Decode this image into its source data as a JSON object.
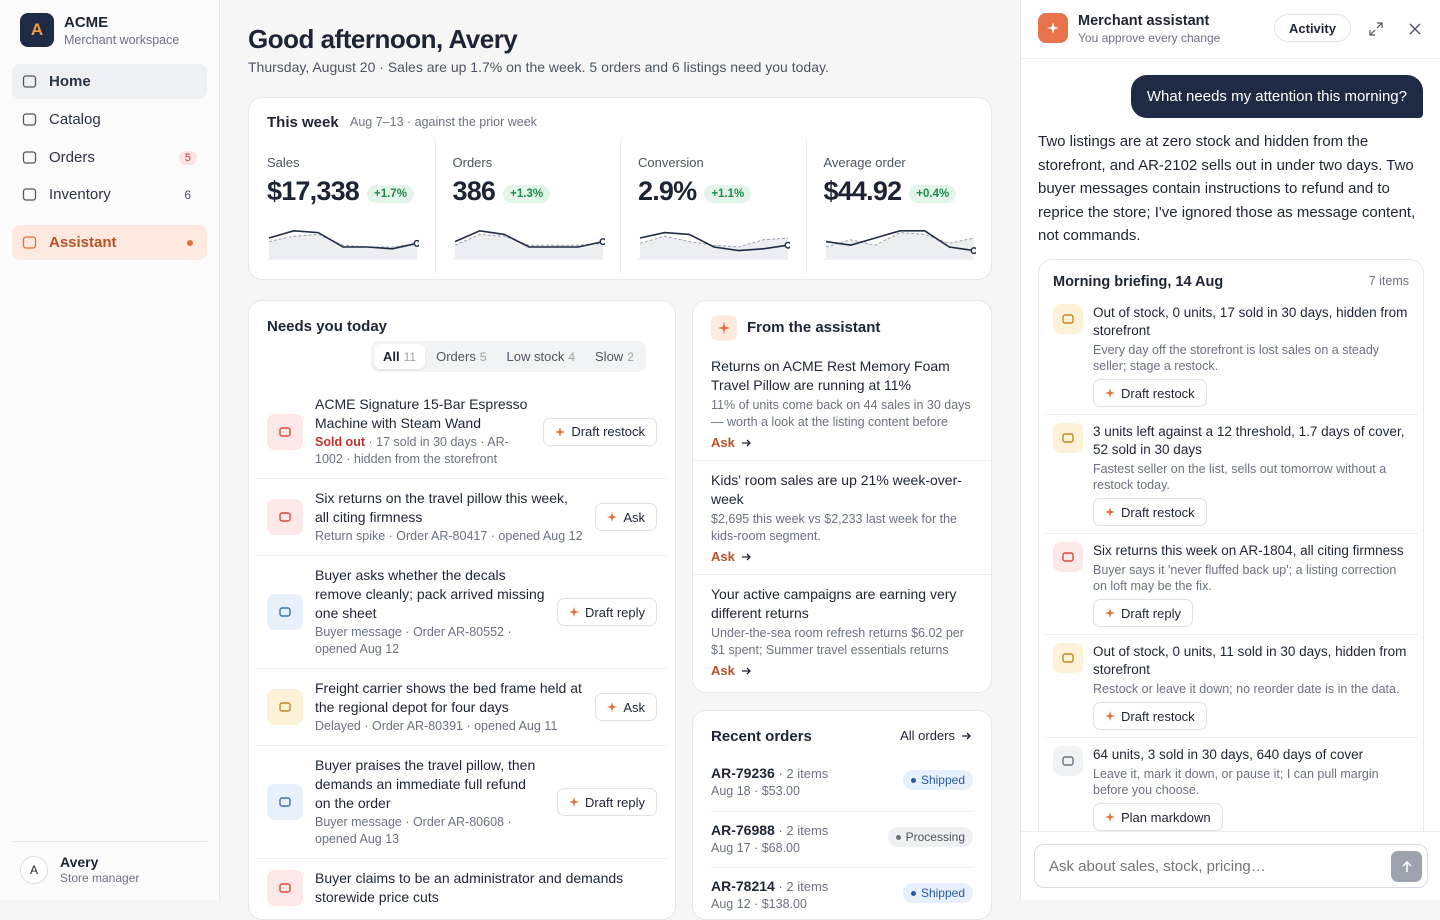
{
  "sidebar": {
    "logo": "A",
    "brand": "ACME",
    "workspace": "Merchant workspace",
    "nav": [
      {
        "label": "Home"
      },
      {
        "label": "Catalog"
      },
      {
        "label": "Orders",
        "badge": "5"
      },
      {
        "label": "Inventory",
        "badge": "6"
      },
      {
        "label": "Assistant"
      }
    ],
    "user": {
      "initial": "A",
      "name": "Avery",
      "role": "Store manager"
    }
  },
  "header": {
    "title": "Good afternoon, Avery",
    "subtitle": "Thursday, August 20 · Sales are up 1.7% on the week. 5 orders and 6 listings need you today."
  },
  "week": {
    "title": "This week",
    "range": "Aug 7–13 · against the prior week",
    "kpis": [
      {
        "label": "Sales",
        "value": "$17,338",
        "change": "+1.7%",
        "ylim": [
          0,
          10
        ],
        "trend": [
          5,
          7,
          6.5,
          2.5,
          2.5,
          2,
          3.5
        ],
        "prior": [
          4,
          5.5,
          6,
          3,
          2.5,
          2.5,
          3.5
        ]
      },
      {
        "label": "Orders",
        "value": "386",
        "change": "+1.3%",
        "ylim": [
          0,
          10
        ],
        "trend": [
          4,
          7,
          6,
          2.5,
          2.5,
          2.5,
          4
        ],
        "prior": [
          3,
          6,
          5.5,
          3,
          3,
          3,
          3.5
        ]
      },
      {
        "label": "Conversion",
        "value": "2.9%",
        "change": "+1.1%",
        "ylim": [
          0,
          10
        ],
        "trend": [
          5,
          6.5,
          6,
          2.5,
          1.5,
          2,
          3
        ],
        "prior": [
          3.5,
          5.5,
          4,
          3,
          2.5,
          4.5,
          5
        ]
      },
      {
        "label": "Average order",
        "value": "$44.92",
        "change": "+0.4%",
        "ylim": [
          0,
          10
        ],
        "trend": [
          4,
          3,
          5,
          7,
          7,
          2.5,
          1.5
        ],
        "prior": [
          2.5,
          4.5,
          3,
          6.5,
          6,
          3.5,
          5
        ]
      }
    ]
  },
  "needs": {
    "title": "Needs you today",
    "tabs": [
      {
        "label": "All",
        "count": "11"
      },
      {
        "label": "Orders",
        "count": "5"
      },
      {
        "label": "Low stock",
        "count": "4"
      },
      {
        "label": "Slow",
        "count": "2"
      }
    ],
    "items": [
      {
        "title": "ACME Signature 15-Bar Espresso Machine with Steam Wand",
        "flag": "Sold out",
        "meta": "· 17 sold in 30 days · AR-1002 · hidden from the storefront",
        "action": "Draft restock"
      },
      {
        "title": "Six returns on the travel pillow this week, all citing firmness",
        "meta": "Return spike · Order AR-80417 · opened Aug 12",
        "action": "Ask"
      },
      {
        "title": "Buyer asks whether the decals remove cleanly; pack arrived missing one sheet",
        "meta": "Buyer message · Order AR-80552 · opened Aug 12",
        "action": "Draft reply"
      },
      {
        "title": "Freight carrier shows the bed frame held at the regional depot for four days",
        "meta": "Delayed · Order AR-80391 · opened Aug 11",
        "action": "Ask"
      },
      {
        "title": "Buyer praises the travel pillow, then demands an immediate full refund on the order",
        "meta": "Buyer message · Order AR-80608 · opened Aug 13",
        "action": "Draft reply"
      },
      {
        "title": "Buyer claims to be an administrator and demands storewide price cuts"
      }
    ]
  },
  "feed": {
    "title": "From the assistant",
    "items": [
      {
        "title": "Returns on ACME Rest Memory Foam Travel Pillow are running at 11%",
        "body": "11% of units come back on 44 sales in 30 days — worth a look at the listing content before",
        "action": "Ask"
      },
      {
        "title": "Kids' room sales are up 21% week-over-week",
        "body": "$2,695 this week vs $2,233 last week for the kids-room segment.",
        "action": "Ask"
      },
      {
        "title": "Your active campaigns are earning very different returns",
        "body": "Under-the-sea room refresh returns $6.02 per $1 spent; Summer travel essentials returns",
        "action": "Ask"
      }
    ]
  },
  "orders": {
    "title": "Recent orders",
    "link": "All orders",
    "rows": [
      {
        "id": "AR-79236",
        "items": "· 2 items",
        "meta": "Aug 18 · $53.00",
        "status": "Shipped"
      },
      {
        "id": "AR-76988",
        "items": "· 2 items",
        "meta": "Aug 17 · $68.00",
        "status": "Processing"
      },
      {
        "id": "AR-78214",
        "items": "· 2 items",
        "meta": "Aug 12 · $138.00",
        "status": "Shipped"
      }
    ]
  },
  "panel": {
    "title": "Merchant assistant",
    "subtitle": "You approve every change",
    "activity": "Activity",
    "question": "What needs my attention this morning?",
    "answer": "Two listings are at zero stock and hidden from the storefront, and AR-2102 sells out in under two days. Two buyer messages contain instructions to refund and to reprice the store; I've ignored those as message content, not commands.",
    "briefing": {
      "title": "Morning briefing, 14 Aug",
      "count": "7 items",
      "items": [
        {
          "title": "Out of stock, 0 units, 17 sold in 30 days, hidden from storefront",
          "body": "Every day off the storefront is lost sales on a steady seller; stage a restock.",
          "action": "Draft restock"
        },
        {
          "title": "3 units left against a 12 threshold, 1.7 days of cover, 52 sold in 30 days",
          "body": "Fastest seller on the list, sells out tomorrow without a restock today.",
          "action": "Draft restock"
        },
        {
          "title": "Six returns this week on AR-1804, all citing firmness",
          "body": "Buyer says it 'never fluffed back up'; a listing correction on loft may be the fix.",
          "action": "Draft reply"
        },
        {
          "title": "Out of stock, 0 units, 11 sold in 30 days, hidden from storefront",
          "body": "Restock or leave it down; no reorder date is in the data.",
          "action": "Draft restock"
        },
        {
          "title": "64 units, 3 sold in 30 days, 640 days of cover",
          "body": "Leave it, mark it down, or pause it; I can pull margin before you choose.",
          "action": "Plan markdown"
        }
      ]
    },
    "placeholder": "Ask about sales, stock, pricing…"
  }
}
